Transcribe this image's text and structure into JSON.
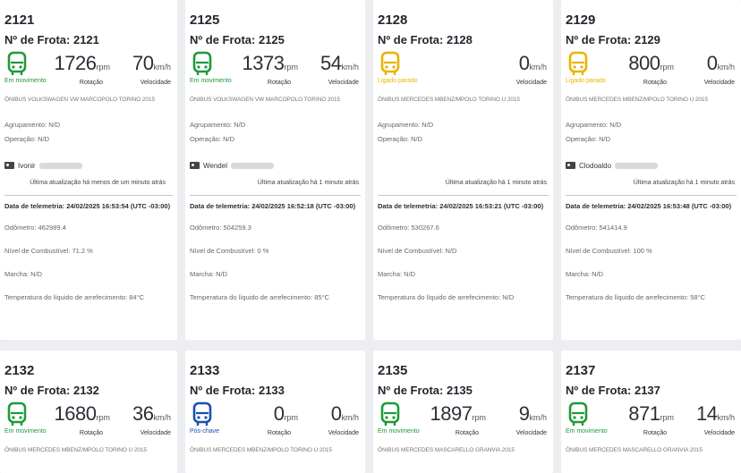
{
  "labels": {
    "rotacao": "Rotação",
    "velocidade": "Velocidade",
    "rpm_unit": "rpm",
    "kmh_unit": "km/h"
  },
  "colors": {
    "em_movimento": "#1e9a3a",
    "ligado_parado": "#e8b400",
    "pos_chave": "#1c4fb0"
  },
  "vehicles": [
    {
      "id": "2121",
      "frota": "Nº de Frota: 2121",
      "status": "Em movimento",
      "rpm": "1726",
      "speed": "70",
      "model": "ÔNIBUS VOLKSWAGEN VW MARCOPOLO TORINO 2015",
      "agrupamento": "Agrupamento: N/D",
      "operacao": "Operação: N/D",
      "driver": "Ivonir",
      "update": "Última atualização há menos de um minuto atrás",
      "telemetry": "Data de telemetria: 24/02/2025 16:53:54 (UTC -03:00)",
      "odometro": "Odômetro: 462989.4",
      "combustivel": "Nível de Combustível: 71.2 %",
      "marcha": "Marcha: N/D",
      "temperatura": "Temperatura do líquido de arrefecimento: 84°C"
    },
    {
      "id": "2125",
      "frota": "Nº de Frota: 2125",
      "status": "Em movimento",
      "rpm": "1373",
      "speed": "54",
      "model": "ÔNIBUS VOLKSWAGEN VW MARCOPOLO TORINO 2015",
      "agrupamento": "Agrupamento: N/D",
      "operacao": "Operação: N/D",
      "driver": "Wendel",
      "update": "Última atualização há 1 minuto atrás",
      "telemetry": "Data de telemetria: 24/02/2025 16:52:18 (UTC -03:00)",
      "odometro": "Odômetro: 504259.3",
      "combustivel": "Nível de Combustível: 0 %",
      "marcha": "Marcha: N/D",
      "temperatura": "Temperatura do líquido de arrefecimento: 85°C"
    },
    {
      "id": "2128",
      "frota": "Nº de Frota: 2128",
      "status": "Ligado parado",
      "rpm": "",
      "speed": "0",
      "model": "ÔNIBUS MERCEDES MBENZ/MPOLO TORINO U 2015",
      "agrupamento": "Agrupamento: N/D",
      "operacao": "Operação: N/D",
      "driver": "",
      "update": "Última atualização há 1 minuto atrás",
      "telemetry": "Data de telemetria: 24/02/2025 16:53:21 (UTC -03:00)",
      "odometro": "Odômetro: 530267.6",
      "combustivel": "Nível de Combustível: N/D",
      "marcha": "Marcha: N/D",
      "temperatura": "Temperatura do líquido de arrefecimento: N/D"
    },
    {
      "id": "2129",
      "frota": "Nº de Frota: 2129",
      "status": "Ligado parado",
      "rpm": "800",
      "speed": "0",
      "model": "ÔNIBUS MERCEDES MBENZ/MPOLO TORINO U 2015",
      "agrupamento": "Agrupamento: N/D",
      "operacao": "Operação: N/D",
      "driver": "Clodoaldo",
      "update": "Última atualização há 1 minuto atrás",
      "telemetry": "Data de telemetria: 24/02/2025 16:53:48 (UTC -03:00)",
      "odometro": "Odômetro: 541414.9",
      "combustivel": "Nível de Combustível: 100 %",
      "marcha": "Marcha: N/D",
      "temperatura": "Temperatura do líquido de arrefecimento: 58°C"
    },
    {
      "id": "2132",
      "frota": "Nº de Frota: 2132",
      "status": "Em movimento",
      "rpm": "1680",
      "speed": "36",
      "model": "ÔNIBUS MERCEDES MBENZ/MPOLO TORINO U 2015"
    },
    {
      "id": "2133",
      "frota": "Nº de Frota: 2133",
      "status": "Pós-chave",
      "rpm": "0",
      "speed": "0",
      "model": "ÔNIBUS MERCEDES MBENZ/MPOLO TORINO U 2015"
    },
    {
      "id": "2135",
      "frota": "Nº de Frota: 2135",
      "status": "Em movimento",
      "rpm": "1897",
      "speed": "9",
      "model": "ÔNIBUS MERCEDES MASCARELLO GRANVIA 2015"
    },
    {
      "id": "2137",
      "frota": "Nº de Frota: 2137",
      "status": "Em movimento",
      "rpm": "871",
      "speed": "14",
      "model": "ÔNIBUS MERCEDES MASCARELLO GRANVIA 2015"
    }
  ]
}
